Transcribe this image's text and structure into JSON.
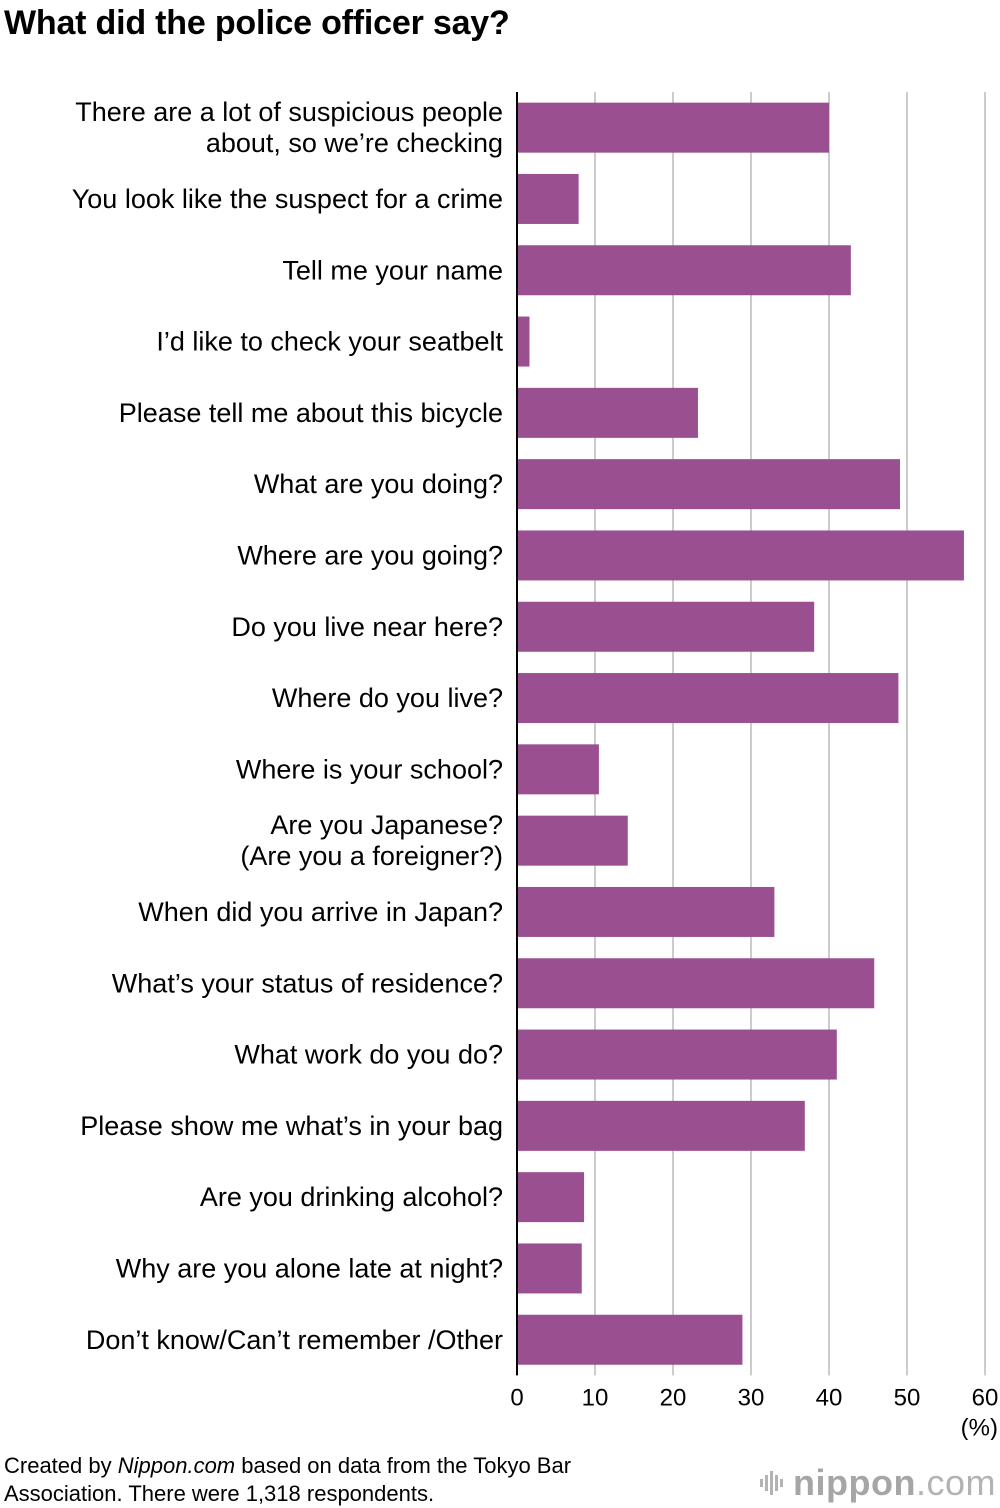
{
  "chart_data": {
    "type": "bar",
    "orientation": "horizontal",
    "title": "What did the police officer say?",
    "categories": [
      [
        "There are a lot of suspicious people",
        "about, so we’re checking"
      ],
      [
        "You look like the suspect for a crime"
      ],
      [
        "Tell me your name"
      ],
      [
        "I’d like to check your seatbelt"
      ],
      [
        "Please tell me about this bicycle"
      ],
      [
        "What are you doing?"
      ],
      [
        "Where are you going?"
      ],
      [
        "Do you live near here?"
      ],
      [
        "Where do you live?"
      ],
      [
        "Where is your school?"
      ],
      [
        "Are you Japanese?",
        "(Are you a foreigner?)"
      ],
      [
        "When did you arrive in Japan?"
      ],
      [
        "What’s your status of residence?"
      ],
      [
        "What work do you do?"
      ],
      [
        "Please show me what’s in your bag"
      ],
      [
        "Are you drinking alcohol?"
      ],
      [
        "Why are you alone late at night?"
      ],
      [
        "Don’t know/Can’t remember /Other"
      ]
    ],
    "values": [
      40.0,
      7.9,
      42.8,
      1.6,
      23.2,
      49.1,
      57.3,
      38.1,
      48.9,
      10.5,
      14.2,
      33.0,
      45.8,
      41.0,
      36.9,
      8.6,
      8.3,
      28.9
    ],
    "xlim": [
      0,
      60
    ],
    "xticks": [
      0,
      10,
      20,
      30,
      40,
      50,
      60
    ],
    "unit_label": "(%)",
    "grid": true,
    "bar_color": "#9a4f90",
    "grid_color": "#cccccc"
  },
  "footer": {
    "prefix": "Created by ",
    "source": "Nippon.com",
    "suffix": " based on data from the Tokyo Bar Association. There were 1,318 respondents."
  },
  "logo": {
    "icon": "nippon-bars-icon",
    "text_bold": "nippon",
    "text_light": ".com"
  }
}
